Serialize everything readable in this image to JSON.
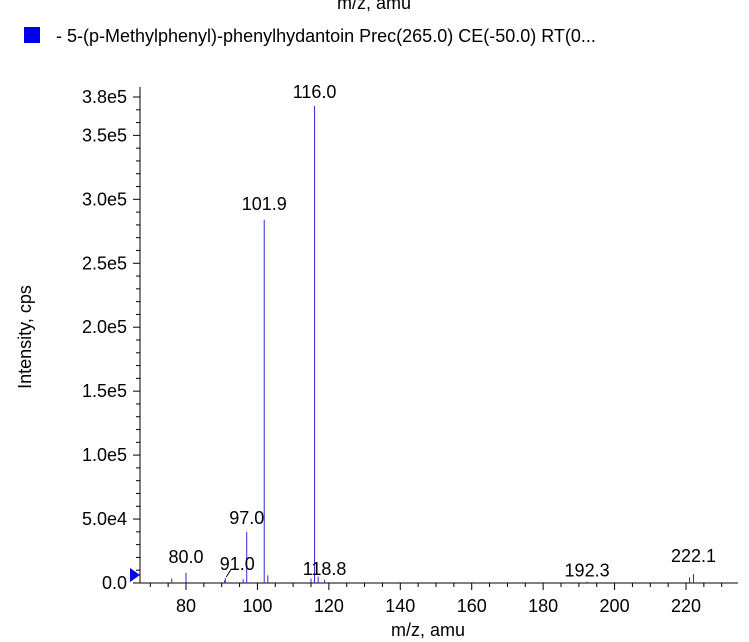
{
  "chart_data": {
    "type": "bar",
    "top_caption_fragment": "m/z, amu",
    "legend": {
      "marker_color": "#0000ee",
      "text": "- 5-(p-Methylphenyl)-phenylhydantoin Prec(265.0) CE(-50.0) RT(0..."
    },
    "xlabel": "m/z, amu",
    "ylabel": "Intensity, cps",
    "xlim": [
      64,
      230
    ],
    "ylim": [
      0,
      380000
    ],
    "grid": false,
    "series_color": "#2a2ad8",
    "x_ticks": [
      {
        "value": 80,
        "label": "80"
      },
      {
        "value": 100,
        "label": "100"
      },
      {
        "value": 120,
        "label": "120"
      },
      {
        "value": 140,
        "label": "140"
      },
      {
        "value": 160,
        "label": "160"
      },
      {
        "value": 180,
        "label": "180"
      },
      {
        "value": 200,
        "label": "200"
      },
      {
        "value": 220,
        "label": "220"
      }
    ],
    "y_ticks": [
      {
        "value": 0,
        "label": "0.0"
      },
      {
        "value": 50000,
        "label": "5.0e4"
      },
      {
        "value": 100000,
        "label": "1.0e5"
      },
      {
        "value": 150000,
        "label": "1.5e5"
      },
      {
        "value": 200000,
        "label": "2.0e5"
      },
      {
        "value": 250000,
        "label": "2.5e5"
      },
      {
        "value": 300000,
        "label": "3.0e5"
      },
      {
        "value": 350000,
        "label": "3.5e5"
      },
      {
        "value": 380000,
        "label": "3.8e5"
      }
    ],
    "peaks": [
      {
        "mz": 76.0,
        "intensity": 3500
      },
      {
        "mz": 80.0,
        "intensity": 8000
      },
      {
        "mz": 90.8,
        "intensity": 2000
      },
      {
        "mz": 91.0,
        "intensity": 4000
      },
      {
        "mz": 96.0,
        "intensity": 3000
      },
      {
        "mz": 97.0,
        "intensity": 40000
      },
      {
        "mz": 101.9,
        "intensity": 284000
      },
      {
        "mz": 102.9,
        "intensity": 6000
      },
      {
        "mz": 115.0,
        "intensity": 3500
      },
      {
        "mz": 116.0,
        "intensity": 373000
      },
      {
        "mz": 117.0,
        "intensity": 5000
      },
      {
        "mz": 118.8,
        "intensity": 2500
      },
      {
        "mz": 192.3,
        "intensity": 1000
      },
      {
        "mz": 221.0,
        "intensity": 4500
      },
      {
        "mz": 222.1,
        "intensity": 7000
      }
    ],
    "peak_labels": [
      {
        "mz": 80.0,
        "text": "80.0"
      },
      {
        "mz": 91.0,
        "text": "91.0"
      },
      {
        "mz": 97.0,
        "text": "97.0"
      },
      {
        "mz": 101.9,
        "text": "101.9"
      },
      {
        "mz": 116.0,
        "text": "116.0"
      },
      {
        "mz": 118.8,
        "text": "118.8"
      },
      {
        "mz": 192.3,
        "text": "192.3"
      },
      {
        "mz": 222.1,
        "text": "222.1"
      }
    ],
    "threshold_marker_color": "#0000ee"
  }
}
